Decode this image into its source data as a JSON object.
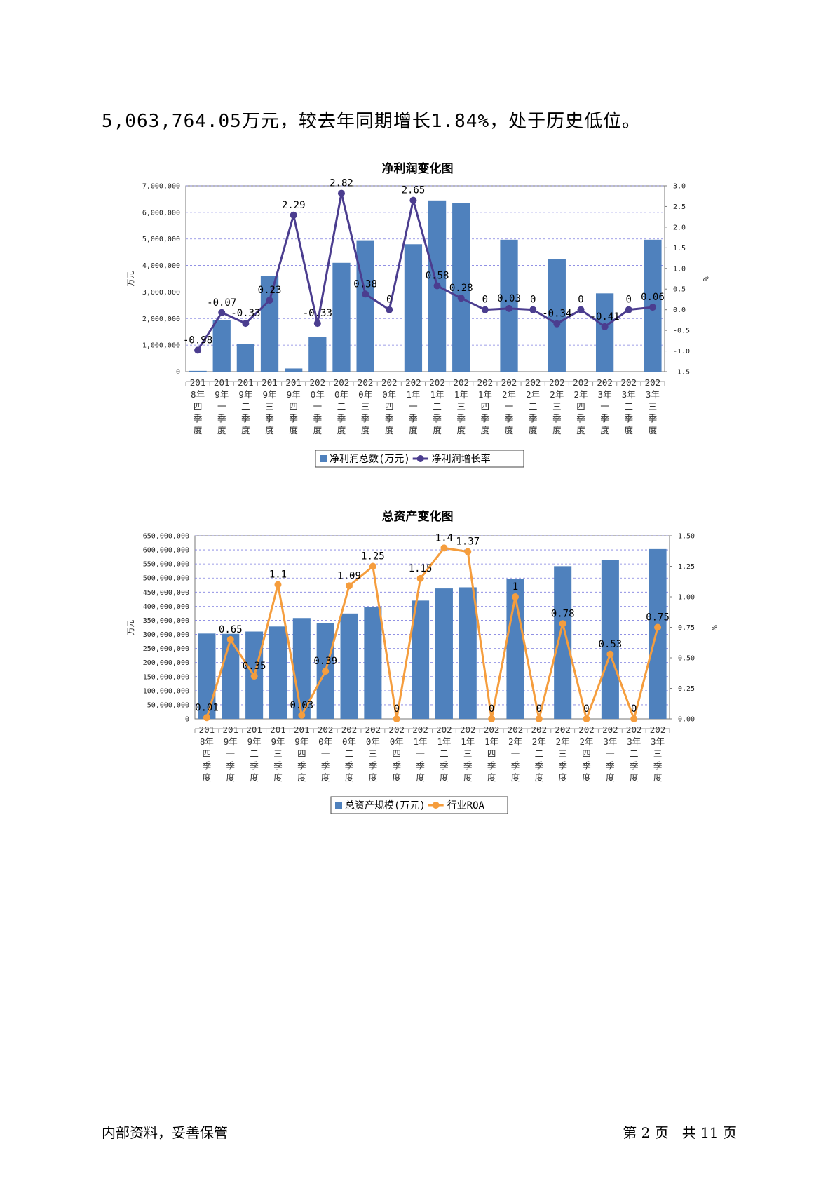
{
  "intro_text": "5,063,764.05万元，较去年同期增长1.84%，处于历史低位。",
  "footer": {
    "left": "内部资料，妥善保管",
    "page_prefix": "第",
    "page_num": "2",
    "page_unit": "页",
    "total_prefix": "共",
    "total_num": "11",
    "total_unit": "页"
  },
  "chart_data": [
    {
      "type": "bar+line",
      "title": "净利润变化图",
      "categories": [
        [
          "201",
          "8年",
          "四",
          "季",
          "度"
        ],
        [
          "201",
          "9年",
          "一",
          "季",
          "度"
        ],
        [
          "201",
          "9年",
          "二",
          "季",
          "度"
        ],
        [
          "201",
          "9年",
          "三",
          "季",
          "度"
        ],
        [
          "201",
          "9年",
          "四",
          "季",
          "度"
        ],
        [
          "202",
          "0年",
          "一",
          "季",
          "度"
        ],
        [
          "202",
          "0年",
          "二",
          "季",
          "度"
        ],
        [
          "202",
          "0年",
          "三",
          "季",
          "度"
        ],
        [
          "202",
          "0年",
          "四",
          "季",
          "度"
        ],
        [
          "202",
          "1年",
          "一",
          "季",
          "度"
        ],
        [
          "202",
          "1年",
          "二",
          "季",
          "度"
        ],
        [
          "202",
          "1年",
          "三",
          "季",
          "度"
        ],
        [
          "202",
          "1年",
          "四",
          "季",
          "度"
        ],
        [
          "202",
          "2年",
          "一",
          "季",
          "度"
        ],
        [
          "202",
          "2年",
          "二",
          "季",
          "度"
        ],
        [
          "202",
          "2年",
          "三",
          "季",
          "度"
        ],
        [
          "202",
          "2年",
          "四",
          "季",
          "度"
        ],
        [
          "202",
          "3年",
          "一",
          "季",
          "度"
        ],
        [
          "202",
          "3年",
          "二",
          "季",
          "度"
        ],
        [
          "202",
          "3年",
          "三",
          "季",
          "度"
        ]
      ],
      "bar_series": {
        "name": "净利润总数(万元)",
        "color": "#4f81bd",
        "values": [
          30000,
          1950000,
          1050000,
          3600000,
          120000,
          1300000,
          4100000,
          4950000,
          0,
          4800000,
          6450000,
          6350000,
          0,
          4970000,
          0,
          4230000,
          0,
          2950000,
          0,
          4970000
        ]
      },
      "line_series": {
        "name": "净利润增长率",
        "color": "#4b3d8f",
        "values": [
          -0.98,
          -0.07,
          -0.33,
          0.23,
          2.29,
          -0.33,
          2.82,
          0.38,
          0,
          2.65,
          0.58,
          0.28,
          0,
          0.03,
          0,
          -0.34,
          0,
          -0.41,
          0,
          0.06
        ],
        "labels": [
          "-0.98",
          "-0.07",
          "-0.33",
          "0.23",
          "2.29",
          "-0.33",
          "2.82",
          "0.38",
          "0",
          "2.65",
          "0.58",
          "0.28",
          "0",
          "0.03",
          "0",
          "-0.34",
          "0",
          "-0.41",
          "0",
          "0.06"
        ]
      },
      "y_left": {
        "label": "万元",
        "min": 0,
        "max": 7000000,
        "ticks": [
          "0",
          "1,000,000",
          "2,000,000",
          "3,000,000",
          "4,000,000",
          "5,000,000",
          "6,000,000",
          "7,000,000"
        ]
      },
      "y_right": {
        "label": "%",
        "min": -1.5,
        "max": 3.0,
        "ticks": [
          "-1.5",
          "-1.0",
          "-0.5",
          "0.0",
          "0.5",
          "1.0",
          "1.5",
          "2.0",
          "2.5",
          "3.0"
        ]
      },
      "grid": true,
      "legend": "bottom"
    },
    {
      "type": "bar+line",
      "title": "总资产变化图",
      "categories": [
        [
          "201",
          "8年",
          "四",
          "季",
          "度"
        ],
        [
          "201",
          "9年",
          "一",
          "季",
          "度"
        ],
        [
          "201",
          "9年",
          "二",
          "季",
          "度"
        ],
        [
          "201",
          "9年",
          "三",
          "季",
          "度"
        ],
        [
          "201",
          "9年",
          "四",
          "季",
          "度"
        ],
        [
          "202",
          "0年",
          "一",
          "季",
          "度"
        ],
        [
          "202",
          "0年",
          "二",
          "季",
          "度"
        ],
        [
          "202",
          "0年",
          "三",
          "季",
          "度"
        ],
        [
          "202",
          "0年",
          "四",
          "季",
          "度"
        ],
        [
          "202",
          "1年",
          "一",
          "季",
          "度"
        ],
        [
          "202",
          "1年",
          "二",
          "季",
          "度"
        ],
        [
          "202",
          "1年",
          "三",
          "季",
          "度"
        ],
        [
          "202",
          "1年",
          "四",
          "季",
          "度"
        ],
        [
          "202",
          "2年",
          "一",
          "季",
          "度"
        ],
        [
          "202",
          "2年",
          "二",
          "季",
          "度"
        ],
        [
          "202",
          "2年",
          "三",
          "季",
          "度"
        ],
        [
          "202",
          "2年",
          "四",
          "季",
          "度"
        ],
        [
          "202",
          "3年",
          "一",
          "季",
          "度"
        ],
        [
          "202",
          "3年",
          "二",
          "季",
          "度"
        ],
        [
          "202",
          "3年",
          "三",
          "季",
          "度"
        ]
      ],
      "bar_series": {
        "name": "总资产规模(万元)",
        "color": "#4f81bd",
        "values": [
          303000000,
          302000000,
          310000000,
          328000000,
          358000000,
          340000000,
          374000000,
          398000000,
          0,
          420000000,
          463000000,
          467000000,
          0,
          498000000,
          0,
          542000000,
          0,
          563000000,
          0,
          603000000
        ]
      },
      "line_series": {
        "name": "行业ROA",
        "color": "#f59d3d",
        "values": [
          0.01,
          0.65,
          0.35,
          1.1,
          0.03,
          0.39,
          1.09,
          1.25,
          0,
          1.15,
          1.4,
          1.37,
          0,
          1,
          0,
          0.78,
          0,
          0.53,
          0,
          0.75
        ],
        "labels": [
          "0.01",
          "0.65",
          "0.35",
          "1.1",
          "0.03",
          "0.39",
          "1.09",
          "1.25",
          "0",
          "1.15",
          "1.4",
          "1.37",
          "0",
          "1",
          "0",
          "0.78",
          "0",
          "0.53",
          "0",
          "0.75"
        ]
      },
      "y_left": {
        "label": "万元",
        "min": 0,
        "max": 650000000,
        "ticks": [
          "0",
          "50,000,000",
          "100,000,000",
          "150,000,000",
          "200,000,000",
          "250,000,000",
          "300,000,000",
          "350,000,000",
          "400,000,000",
          "450,000,000",
          "500,000,000",
          "550,000,000",
          "600,000,000",
          "650,000,000"
        ]
      },
      "y_right": {
        "label": "%",
        "min": 0,
        "max": 1.5,
        "ticks": [
          "0.00",
          "0.25",
          "0.50",
          "0.75",
          "1.00",
          "1.25",
          "1.50"
        ]
      },
      "grid": true,
      "legend": "bottom"
    }
  ]
}
